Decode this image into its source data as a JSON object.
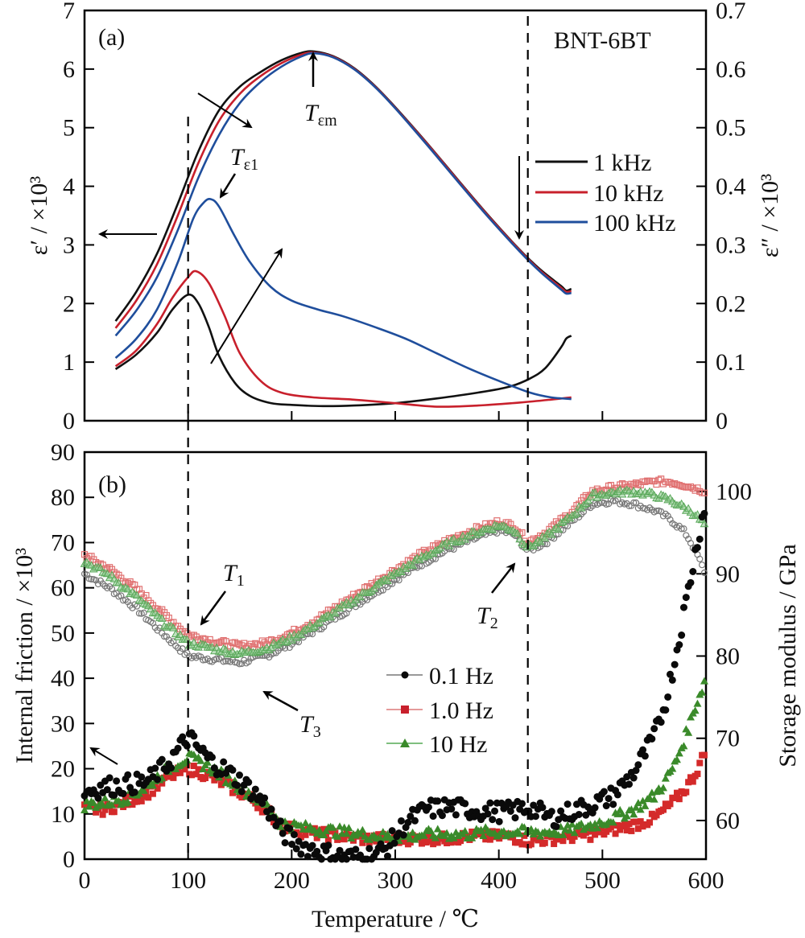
{
  "chart_data": [
    {
      "type": "line",
      "panel_label": "(a)",
      "sample_label": "BNT-6BT",
      "xlabel": "",
      "xlim": [
        0,
        600
      ],
      "xticks": [
        0,
        100,
        200,
        300,
        400,
        500,
        600
      ],
      "ylabel_left": "ε′ / ×10³",
      "ylim_left": [
        0,
        7
      ],
      "yticks_left": [
        "0",
        "1",
        "2",
        "3",
        "4",
        "5",
        "6",
        "7"
      ],
      "ylabel_right": "ε″ / ×10³",
      "ylim_right": [
        0,
        0.7
      ],
      "yticks_right": [
        "0",
        "0.1",
        "0.2",
        "0.3",
        "0.4",
        "0.5",
        "0.6",
        "0.7"
      ],
      "legend": {
        "placement": "right",
        "entries": [
          "1 kHz",
          "10 kHz",
          "100 kHz"
        ]
      },
      "grid": false,
      "series": [
        {
          "name": "1 kHz",
          "quantity": "ε′",
          "axis": "left",
          "color": "#111111",
          "x": [
            30,
            50,
            70,
            90,
            110,
            130,
            150,
            170,
            190,
            210,
            222,
            240,
            260,
            280,
            300,
            330,
            360,
            390,
            420,
            440,
            460,
            465,
            470
          ],
          "y": [
            1.7,
            2.2,
            2.85,
            3.7,
            4.6,
            5.3,
            5.7,
            5.95,
            6.15,
            6.28,
            6.3,
            6.22,
            6.02,
            5.72,
            5.35,
            4.75,
            4.12,
            3.5,
            2.92,
            2.58,
            2.3,
            2.22,
            2.25
          ]
        },
        {
          "name": "10 kHz",
          "quantity": "ε′",
          "axis": "left",
          "color": "#c8202c",
          "x": [
            30,
            50,
            70,
            90,
            110,
            130,
            150,
            170,
            190,
            210,
            222,
            240,
            260,
            280,
            300,
            330,
            360,
            390,
            420,
            440,
            460,
            465,
            470
          ],
          "y": [
            1.58,
            2.05,
            2.67,
            3.5,
            4.4,
            5.12,
            5.58,
            5.88,
            6.1,
            6.25,
            6.28,
            6.21,
            6.01,
            5.71,
            5.34,
            4.74,
            4.11,
            3.49,
            2.91,
            2.56,
            2.27,
            2.2,
            2.21
          ]
        },
        {
          "name": "100 kHz",
          "quantity": "ε′",
          "axis": "left",
          "color": "#1f4e9c",
          "x": [
            30,
            50,
            70,
            90,
            110,
            130,
            150,
            170,
            190,
            210,
            222,
            240,
            260,
            280,
            300,
            330,
            360,
            390,
            420,
            440,
            460,
            465,
            470
          ],
          "y": [
            1.45,
            1.88,
            2.45,
            3.25,
            4.15,
            4.88,
            5.42,
            5.78,
            6.04,
            6.22,
            6.27,
            6.2,
            6.0,
            5.7,
            5.33,
            4.72,
            4.09,
            3.47,
            2.89,
            2.54,
            2.24,
            2.17,
            2.18
          ]
        },
        {
          "name": "1 kHz",
          "quantity": "ε″",
          "axis": "right",
          "color": "#111111",
          "x": [
            30,
            50,
            70,
            85,
            100,
            110,
            120,
            130,
            145,
            160,
            180,
            200,
            230,
            260,
            300,
            340,
            380,
            410,
            430,
            445,
            460,
            465,
            470
          ],
          "y": [
            0.088,
            0.113,
            0.15,
            0.19,
            0.215,
            0.2,
            0.16,
            0.11,
            0.065,
            0.042,
            0.03,
            0.027,
            0.025,
            0.026,
            0.03,
            0.038,
            0.048,
            0.058,
            0.072,
            0.09,
            0.125,
            0.14,
            0.145
          ]
        },
        {
          "name": "10 kHz",
          "quantity": "ε″",
          "axis": "right",
          "color": "#c8202c",
          "x": [
            30,
            50,
            70,
            85,
            100,
            108,
            120,
            135,
            150,
            170,
            190,
            220,
            260,
            300,
            340,
            380,
            420,
            450,
            470
          ],
          "y": [
            0.093,
            0.12,
            0.165,
            0.21,
            0.245,
            0.255,
            0.235,
            0.18,
            0.115,
            0.068,
            0.048,
            0.04,
            0.036,
            0.03,
            0.024,
            0.026,
            0.031,
            0.036,
            0.04
          ]
        },
        {
          "name": "100 kHz",
          "quantity": "ε″",
          "axis": "right",
          "color": "#1f4e9c",
          "x": [
            30,
            50,
            70,
            90,
            105,
            115,
            122,
            130,
            145,
            160,
            180,
            200,
            225,
            250,
            280,
            310,
            340,
            370,
            400,
            430,
            450,
            470
          ],
          "y": [
            0.107,
            0.14,
            0.19,
            0.27,
            0.345,
            0.372,
            0.378,
            0.365,
            0.315,
            0.27,
            0.228,
            0.205,
            0.19,
            0.178,
            0.16,
            0.14,
            0.115,
            0.09,
            0.068,
            0.048,
            0.04,
            0.037
          ]
        }
      ],
      "annotations": [
        {
          "text": "T",
          "sub": "εm",
          "points_to_x": 222
        },
        {
          "text": "T",
          "sub": "ε1",
          "points_to_x": 122
        },
        {
          "text": "left-arrow",
          "meaning": "ε′ curves refer to left axis"
        },
        {
          "text": "frequency-increase-arrow-down-right",
          "meaning": "ε′ decreases with frequency"
        },
        {
          "text": "frequency-increase-arrow-up-right",
          "meaning": "ε″ increases with frequency"
        },
        {
          "text": "down-arrow",
          "meaning": "near T2 dashed line"
        }
      ],
      "reference_lines_x": [
        100,
        428
      ]
    },
    {
      "type": "scatter",
      "panel_label": "(b)",
      "xlabel": "Temperature / ℃",
      "xlim": [
        0,
        600
      ],
      "xticks": [
        "0",
        "100",
        "200",
        "300",
        "400",
        "500",
        "600"
      ],
      "ylabel_left": "Internal friction / ×10³",
      "ylim_left": [
        0,
        90
      ],
      "yticks_left": [
        "0",
        "10",
        "20",
        "30",
        "40",
        "50",
        "60",
        "70",
        "80",
        "90"
      ],
      "ylabel_right": "Storage modulus / GPa",
      "ylim_right": [
        55.3,
        104.8
      ],
      "yticks_right": [
        "60",
        "70",
        "80",
        "90",
        "100"
      ],
      "legend": {
        "placement": "center",
        "entries": [
          "0.1 Hz",
          "1.0 Hz",
          "10 Hz"
        ]
      },
      "grid": false,
      "series": [
        {
          "name": "0.1 Hz",
          "quantity": "Internal friction",
          "axis": "left",
          "color": "#0a0a0a",
          "marker": "circle",
          "x": [
            0,
            20,
            40,
            60,
            80,
            100,
            120,
            140,
            160,
            175,
            190,
            210,
            230,
            250,
            270,
            290,
            310,
            330,
            350,
            370,
            390,
            410,
            430,
            450,
            470,
            490,
            510,
            530,
            550,
            560,
            570,
            580,
            590,
            600
          ],
          "y": [
            15,
            16,
            16.5,
            17,
            21,
            27,
            22,
            19,
            15.5,
            12,
            6,
            3,
            1.5,
            0.5,
            0.5,
            2,
            8,
            11,
            11.5,
            11,
            10.5,
            10.5,
            11.5,
            9,
            10.5,
            12,
            14,
            19,
            27,
            34,
            44,
            56,
            68,
            80
          ]
        },
        {
          "name": "1.0 Hz",
          "quantity": "Internal friction",
          "axis": "left",
          "color": "#d42a2a",
          "marker": "square",
          "x": [
            0,
            20,
            40,
            60,
            80,
            100,
            120,
            140,
            160,
            175,
            190,
            210,
            230,
            250,
            270,
            290,
            310,
            330,
            350,
            370,
            390,
            410,
            430,
            450,
            470,
            490,
            510,
            530,
            550,
            560,
            570,
            580,
            590,
            600
          ],
          "y": [
            11,
            11,
            12.5,
            14.5,
            18,
            20,
            18.5,
            16,
            13.5,
            11,
            7.5,
            6,
            5.5,
            5,
            4.5,
            4.5,
            4.5,
            4.5,
            4.5,
            5,
            5,
            5,
            4,
            4.5,
            5,
            5.5,
            6.5,
            7.5,
            9,
            11,
            13,
            15.5,
            19,
            24
          ]
        },
        {
          "name": "10 Hz",
          "quantity": "Internal friction",
          "axis": "left",
          "color": "#3a8a2a",
          "marker": "triangle",
          "x": [
            0,
            20,
            40,
            60,
            80,
            100,
            120,
            140,
            160,
            175,
            190,
            210,
            230,
            250,
            270,
            290,
            310,
            330,
            350,
            370,
            390,
            410,
            430,
            450,
            470,
            490,
            510,
            530,
            550,
            560,
            570,
            580,
            590,
            600
          ],
          "y": [
            12,
            12.5,
            13.5,
            16,
            20,
            22.5,
            20.5,
            17.5,
            14.5,
            12,
            8,
            7,
            6.5,
            6,
            5.5,
            5,
            5,
            5.5,
            5.5,
            5.5,
            6,
            6,
            6,
            6,
            6.5,
            7.5,
            9,
            11,
            14,
            17,
            21,
            27,
            34,
            40
          ]
        },
        {
          "name": "0.1 Hz",
          "quantity": "Storage modulus",
          "axis": "right",
          "color": "#777777",
          "marker": "open-circle",
          "x": [
            0,
            25,
            50,
            75,
            100,
            125,
            150,
            175,
            200,
            225,
            250,
            275,
            300,
            325,
            350,
            375,
            400,
            415,
            428,
            445,
            470,
            490,
            510,
            530,
            550,
            565,
            580,
            590,
            600
          ],
          "y": [
            90.0,
            88.2,
            85.8,
            82.8,
            80.0,
            79.6,
            79.2,
            80.0,
            81.5,
            83.3,
            85.3,
            87.3,
            89.3,
            91.2,
            92.9,
            94.2,
            95.3,
            94.8,
            92.8,
            93.8,
            96.3,
            98.5,
            98.9,
            98.5,
            97.7,
            96.7,
            95.0,
            92.8,
            89.8
          ]
        },
        {
          "name": "1.0 Hz",
          "quantity": "Storage modulus",
          "axis": "right",
          "color": "#e07070",
          "marker": "open-square",
          "x": [
            0,
            25,
            50,
            75,
            100,
            125,
            150,
            175,
            200,
            225,
            250,
            275,
            300,
            325,
            350,
            375,
            400,
            415,
            428,
            445,
            470,
            490,
            510,
            530,
            550,
            565,
            580,
            590,
            600
          ],
          "y": [
            92.3,
            90.5,
            88.2,
            85.3,
            82.6,
            81.8,
            81.2,
            81.6,
            82.8,
            84.5,
            86.5,
            88.5,
            90.5,
            92.4,
            94.0,
            95.3,
            96.3,
            95.8,
            93.8,
            95.0,
            97.5,
            100.0,
            100.5,
            100.8,
            101.2,
            101.2,
            100.8,
            100.4,
            100.0
          ]
        },
        {
          "name": "10 Hz",
          "quantity": "Storage modulus",
          "axis": "right",
          "color": "#5aa85a",
          "marker": "open-triangle",
          "x": [
            0,
            25,
            50,
            75,
            100,
            125,
            150,
            175,
            200,
            225,
            250,
            275,
            300,
            325,
            350,
            375,
            400,
            415,
            428,
            445,
            470,
            490,
            510,
            530,
            550,
            565,
            580,
            590,
            600
          ],
          "y": [
            91.5,
            89.7,
            87.2,
            84.2,
            81.6,
            80.9,
            80.3,
            80.9,
            82.2,
            84.0,
            86.0,
            88.0,
            90.0,
            91.9,
            93.6,
            94.9,
            95.9,
            95.3,
            93.2,
            94.4,
            97.0,
            99.5,
            99.9,
            100.0,
            99.6,
            99.0,
            98.0,
            97.2,
            95.8
          ]
        }
      ],
      "annotations": [
        {
          "text": "T",
          "sub": "1",
          "points_to_x": 100
        },
        {
          "text": "T",
          "sub": "2",
          "points_to_x": 428
        },
        {
          "text": "T",
          "sub": "3",
          "points_to_x": 155
        },
        {
          "text": "up-left-arrow",
          "meaning": "internal friction curves refer to left axis"
        }
      ],
      "reference_lines_x": [
        100,
        428
      ]
    }
  ]
}
